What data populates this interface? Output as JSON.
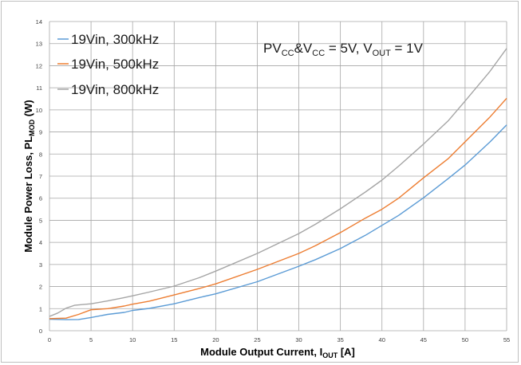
{
  "chart_data": {
    "type": "line",
    "xlabel": {
      "main": "Module Output  Current, I",
      "sub": "OUT",
      "tail": " [A]"
    },
    "ylabel": {
      "main": "Module Power Loss, PL",
      "sub": "MOD",
      "tail": " (W)"
    },
    "annotation": {
      "parts": [
        {
          "t": "PV",
          "s": false
        },
        {
          "t": "CC",
          "s": true
        },
        {
          "t": "&V",
          "s": false
        },
        {
          "t": "CC",
          "s": true
        },
        {
          "t": " = 5V, V",
          "s": false
        },
        {
          "t": "OUT",
          "s": true
        },
        {
          "t": " = 1V",
          "s": false
        }
      ]
    },
    "xlim": [
      0,
      55
    ],
    "ylim": [
      0,
      14
    ],
    "xticks": [
      "0",
      "5",
      "10",
      "15",
      "20",
      "25",
      "30",
      "35",
      "40",
      "45",
      "50",
      "55"
    ],
    "yticks": [
      "0",
      "1",
      "2",
      "3",
      "4",
      "5",
      "6",
      "7",
      "8",
      "9",
      "10",
      "11",
      "12",
      "13",
      "14"
    ],
    "grid": true,
    "legend_position": "top-left",
    "series": [
      {
        "name": "19Vin, 300kHz",
        "color": "#5b9bd5",
        "points": [
          [
            0,
            0.52
          ],
          [
            2,
            0.5
          ],
          [
            3.5,
            0.51
          ],
          [
            5,
            0.6
          ],
          [
            7,
            0.74
          ],
          [
            9,
            0.83
          ],
          [
            10,
            0.92
          ],
          [
            12,
            1.01
          ],
          [
            15,
            1.22
          ],
          [
            18,
            1.5
          ],
          [
            20,
            1.67
          ],
          [
            25,
            2.22
          ],
          [
            30,
            2.92
          ],
          [
            32,
            3.22
          ],
          [
            35,
            3.72
          ],
          [
            38,
            4.32
          ],
          [
            40,
            4.77
          ],
          [
            42,
            5.22
          ],
          [
            45,
            6.02
          ],
          [
            48,
            6.9
          ],
          [
            50,
            7.5
          ],
          [
            53,
            8.55
          ],
          [
            55,
            9.32
          ]
        ]
      },
      {
        "name": "19Vin, 500kHz",
        "color": "#ed7d31",
        "points": [
          [
            0,
            0.55
          ],
          [
            2,
            0.57
          ],
          [
            3.5,
            0.74
          ],
          [
            5,
            0.95
          ],
          [
            7,
            1.0
          ],
          [
            9,
            1.12
          ],
          [
            10,
            1.2
          ],
          [
            12,
            1.34
          ],
          [
            15,
            1.62
          ],
          [
            18,
            1.91
          ],
          [
            20,
            2.12
          ],
          [
            25,
            2.78
          ],
          [
            30,
            3.5
          ],
          [
            32,
            3.85
          ],
          [
            35,
            4.44
          ],
          [
            38,
            5.1
          ],
          [
            40,
            5.5
          ],
          [
            42,
            6.0
          ],
          [
            45,
            6.92
          ],
          [
            48,
            7.8
          ],
          [
            50,
            8.55
          ],
          [
            53,
            9.68
          ],
          [
            55,
            10.52
          ]
        ]
      },
      {
        "name": "19Vin, 800kHz",
        "color": "#a5a5a5",
        "points": [
          [
            0,
            0.65
          ],
          [
            1,
            0.8
          ],
          [
            2,
            1.02
          ],
          [
            3,
            1.15
          ],
          [
            5,
            1.22
          ],
          [
            7,
            1.35
          ],
          [
            9,
            1.5
          ],
          [
            10,
            1.58
          ],
          [
            12,
            1.75
          ],
          [
            15,
            2.02
          ],
          [
            18,
            2.4
          ],
          [
            20,
            2.7
          ],
          [
            25,
            3.5
          ],
          [
            30,
            4.4
          ],
          [
            32,
            4.82
          ],
          [
            35,
            5.52
          ],
          [
            38,
            6.28
          ],
          [
            40,
            6.82
          ],
          [
            42,
            7.45
          ],
          [
            45,
            8.45
          ],
          [
            48,
            9.52
          ],
          [
            50,
            10.4
          ],
          [
            53,
            11.75
          ],
          [
            55,
            12.78
          ]
        ]
      }
    ]
  }
}
